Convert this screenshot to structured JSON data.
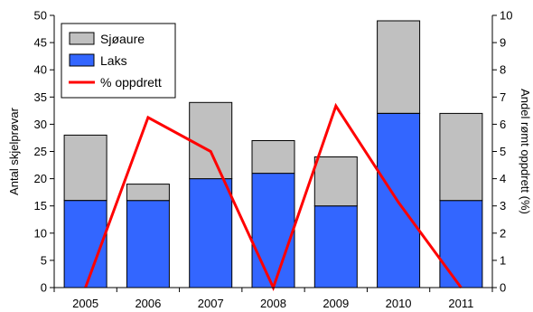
{
  "chart_data": {
    "type": "bar",
    "stacked": true,
    "categories": [
      "2005",
      "2006",
      "2007",
      "2008",
      "2009",
      "2010",
      "2011"
    ],
    "series": [
      {
        "name": "Laks",
        "kind": "bar",
        "axis": "left",
        "color": "#3366ff",
        "values": [
          16,
          16,
          20,
          21,
          15,
          32,
          16
        ]
      },
      {
        "name": "Sjøaure",
        "kind": "bar",
        "axis": "left",
        "color": "#c0c0c0",
        "values": [
          12,
          3,
          14,
          6,
          9,
          17,
          16
        ]
      },
      {
        "name": "% oppdrett",
        "kind": "line",
        "axis": "right",
        "color": "#ff0000",
        "values": [
          0,
          6.25,
          5,
          0,
          6.67,
          3.13,
          0
        ]
      }
    ],
    "ylabel": "Antal skjelprøvar",
    "y2label": "Andel rømt oppdrett (%)",
    "ylim": [
      0,
      50
    ],
    "y2lim": [
      0,
      10
    ],
    "yticks": [
      0,
      5,
      10,
      15,
      20,
      25,
      30,
      35,
      40,
      45,
      50
    ],
    "y2ticks": [
      0,
      1,
      2,
      3,
      4,
      5,
      6,
      7,
      8,
      9,
      10
    ],
    "grid": false,
    "legend": {
      "position": "top-left",
      "entries": [
        {
          "label": "Sjøaure",
          "color": "#c0c0c0",
          "kind": "bar"
        },
        {
          "label": "Laks",
          "color": "#3366ff",
          "kind": "bar"
        },
        {
          "label": "% oppdrett",
          "color": "#ff0000",
          "kind": "line"
        }
      ]
    }
  }
}
